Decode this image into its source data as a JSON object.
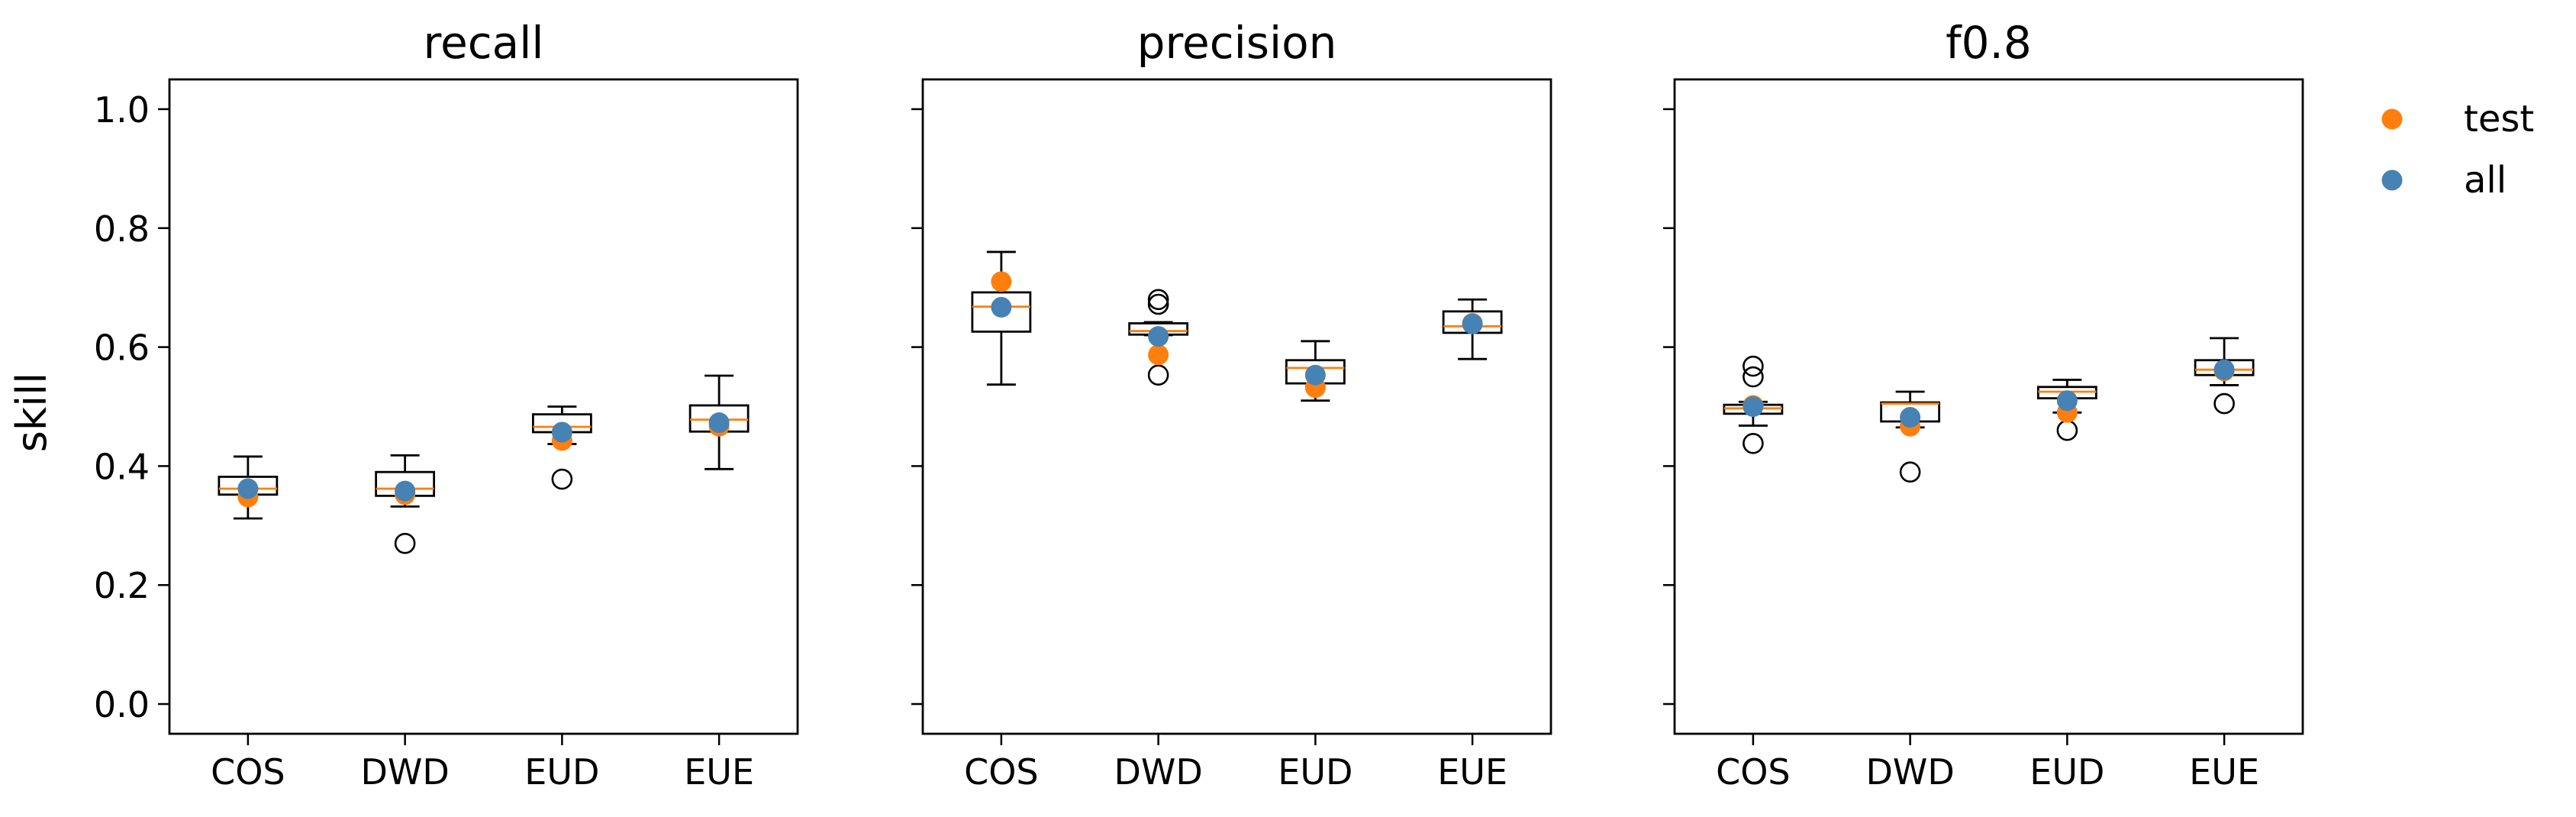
{
  "figure": {
    "ylabel": "skill",
    "legend": {
      "placement": "outside-right-top",
      "entries": [
        {
          "label": "test",
          "color": "#ff7f0e"
        },
        {
          "label": "all",
          "color": "#4682b4"
        }
      ]
    },
    "colors": {
      "median": "#ff7f0e",
      "test": "#ff7f0e",
      "all": "#4682b4",
      "box": "#000000"
    }
  },
  "chart_data": [
    {
      "type": "box",
      "title": "recall",
      "ylabel": "skill",
      "ylim": [
        -0.05,
        1.05
      ],
      "yticks": [
        "0.0",
        "0.2",
        "0.4",
        "0.6",
        "0.8",
        "1.0"
      ],
      "categories": [
        "COS",
        "DWD",
        "EUD",
        "EUE"
      ],
      "boxes": [
        {
          "whislo": 0.312,
          "q1": 0.352,
          "med": 0.362,
          "q3": 0.382,
          "whishi": 0.416,
          "fliers": [],
          "test": 0.348,
          "all": 0.362
        },
        {
          "whislo": 0.332,
          "q1": 0.35,
          "med": 0.362,
          "q3": 0.39,
          "whishi": 0.418,
          "fliers": [
            0.27
          ],
          "test": 0.352,
          "all": 0.358
        },
        {
          "whislo": 0.437,
          "q1": 0.457,
          "med": 0.466,
          "q3": 0.487,
          "whishi": 0.5,
          "fliers": [
            0.378
          ],
          "test": 0.443,
          "all": 0.457
        },
        {
          "whislo": 0.395,
          "q1": 0.458,
          "med": 0.478,
          "q3": 0.502,
          "whishi": 0.552,
          "fliers": [],
          "test": 0.467,
          "all": 0.473
        }
      ]
    },
    {
      "type": "box",
      "title": "precision",
      "ylim": [
        -0.05,
        1.05
      ],
      "categories": [
        "COS",
        "DWD",
        "EUD",
        "EUE"
      ],
      "boxes": [
        {
          "whislo": 0.537,
          "q1": 0.626,
          "med": 0.668,
          "q3": 0.692,
          "whishi": 0.76,
          "fliers": [],
          "test": 0.71,
          "all": 0.667
        },
        {
          "whislo": 0.62,
          "q1": 0.621,
          "med": 0.627,
          "q3": 0.64,
          "whishi": 0.642,
          "fliers": [
            0.553,
            0.672,
            0.68
          ],
          "test": 0.587,
          "all": 0.618
        },
        {
          "whislo": 0.51,
          "q1": 0.539,
          "med": 0.565,
          "q3": 0.578,
          "whishi": 0.61,
          "fliers": [],
          "test": 0.532,
          "all": 0.553
        },
        {
          "whislo": 0.58,
          "q1": 0.624,
          "med": 0.635,
          "q3": 0.66,
          "whishi": 0.68,
          "fliers": [],
          "test": 0.64,
          "all": 0.639
        }
      ]
    },
    {
      "type": "box",
      "title": "f0.8",
      "ylim": [
        -0.05,
        1.05
      ],
      "categories": [
        "COS",
        "DWD",
        "EUD",
        "EUE"
      ],
      "boxes": [
        {
          "whislo": 0.468,
          "q1": 0.488,
          "med": 0.497,
          "q3": 0.503,
          "whishi": 0.508,
          "fliers": [
            0.438,
            0.55,
            0.568
          ],
          "test": 0.502,
          "all": 0.5
        },
        {
          "whislo": 0.465,
          "q1": 0.475,
          "med": 0.505,
          "q3": 0.507,
          "whishi": 0.525,
          "fliers": [
            0.39
          ],
          "test": 0.467,
          "all": 0.482
        },
        {
          "whislo": 0.49,
          "q1": 0.514,
          "med": 0.525,
          "q3": 0.533,
          "whishi": 0.545,
          "fliers": [
            0.46
          ],
          "test": 0.49,
          "all": 0.51
        },
        {
          "whislo": 0.536,
          "q1": 0.553,
          "med": 0.562,
          "q3": 0.578,
          "whishi": 0.615,
          "fliers": [
            0.505
          ],
          "test": 0.56,
          "all": 0.562
        }
      ]
    }
  ]
}
